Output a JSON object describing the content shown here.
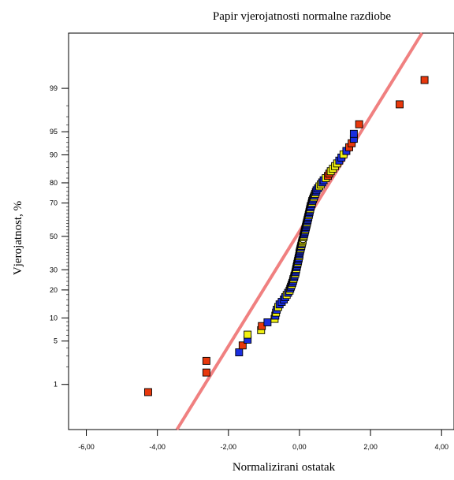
{
  "chart_data": {
    "type": "scatter",
    "title": "Papir vjerojatnosti normalne razdiobe",
    "xlabel": "Normalizirani ostatak",
    "ylabel": "Vjerojatnost, %",
    "xlim": [
      -6.5,
      4.35
    ],
    "ylim_percent": [
      0.12,
      99.93
    ],
    "y_scale": "normal-probability",
    "x_ticks": [
      -6,
      -4,
      -2,
      0,
      2,
      4
    ],
    "x_tick_labels": [
      "-6,00",
      "-4,00",
      "-2,00",
      "0,00",
      "2,00",
      "4,00"
    ],
    "y_ticks": [
      1,
      5,
      10,
      20,
      30,
      50,
      70,
      80,
      90,
      95,
      99
    ],
    "y_tick_labels": [
      "1",
      "5",
      "10",
      "20",
      "30",
      "50",
      "70",
      "80",
      "90",
      "95",
      "99"
    ],
    "fit_line": {
      "x": [
        -3.45,
        3.45
      ],
      "percent": [
        0.12,
        99.93
      ],
      "color": "#f08080"
    },
    "grid": false,
    "colors": {
      "red": "#e8380c",
      "blue": "#1a2ee0",
      "yellow": "#f2f212",
      "open": "#ffffff"
    },
    "points": [
      {
        "x": -4.26,
        "p": 0.72,
        "c": "red"
      },
      {
        "x": -2.62,
        "p": 1.62,
        "c": "red"
      },
      {
        "x": -2.62,
        "p": 2.52,
        "c": "red"
      },
      {
        "x": -1.7,
        "p": 3.42,
        "c": "blue"
      },
      {
        "x": -1.6,
        "p": 4.33,
        "c": "red"
      },
      {
        "x": -1.46,
        "p": 5.23,
        "c": "blue"
      },
      {
        "x": -1.46,
        "p": 6.13,
        "c": "yellow"
      },
      {
        "x": -1.08,
        "p": 7.03,
        "c": "yellow"
      },
      {
        "x": -1.06,
        "p": 7.94,
        "c": "red"
      },
      {
        "x": -0.9,
        "p": 8.84,
        "c": "blue"
      },
      {
        "x": -0.7,
        "p": 9.74,
        "c": "yellow"
      },
      {
        "x": -0.68,
        "p": 10.65,
        "c": "blue"
      },
      {
        "x": -0.66,
        "p": 11.55,
        "c": "yellow"
      },
      {
        "x": -0.64,
        "p": 12.45,
        "c": "blue"
      },
      {
        "x": -0.6,
        "p": 13.35,
        "c": "yellow"
      },
      {
        "x": -0.56,
        "p": 14.26,
        "c": "blue"
      },
      {
        "x": -0.5,
        "p": 15.16,
        "c": "blue"
      },
      {
        "x": -0.44,
        "p": 16.06,
        "c": "blue"
      },
      {
        "x": -0.4,
        "p": 16.97,
        "c": "blue"
      },
      {
        "x": -0.36,
        "p": 17.87,
        "c": "yellow"
      },
      {
        "x": -0.32,
        "p": 18.77,
        "c": "blue"
      },
      {
        "x": -0.28,
        "p": 19.68,
        "c": "yellow"
      },
      {
        "x": -0.26,
        "p": 20.58,
        "c": "blue"
      },
      {
        "x": -0.24,
        "p": 21.48,
        "c": "blue"
      },
      {
        "x": -0.22,
        "p": 22.39,
        "c": "yellow"
      },
      {
        "x": -0.2,
        "p": 23.29,
        "c": "blue"
      },
      {
        "x": -0.18,
        "p": 24.19,
        "c": "blue"
      },
      {
        "x": -0.17,
        "p": 25.1,
        "c": "yellow"
      },
      {
        "x": -0.15,
        "p": 26.0,
        "c": "blue"
      },
      {
        "x": -0.14,
        "p": 26.9,
        "c": "blue"
      },
      {
        "x": -0.12,
        "p": 27.81,
        "c": "yellow"
      },
      {
        "x": -0.11,
        "p": 28.71,
        "c": "blue"
      },
      {
        "x": -0.1,
        "p": 29.61,
        "c": "blue"
      },
      {
        "x": -0.09,
        "p": 30.52,
        "c": "yellow"
      },
      {
        "x": -0.08,
        "p": 31.42,
        "c": "blue"
      },
      {
        "x": -0.07,
        "p": 32.32,
        "c": "blue"
      },
      {
        "x": -0.06,
        "p": 33.23,
        "c": "blue"
      },
      {
        "x": -0.05,
        "p": 34.13,
        "c": "yellow"
      },
      {
        "x": -0.04,
        "p": 35.03,
        "c": "blue"
      },
      {
        "x": -0.03,
        "p": 35.94,
        "c": "blue"
      },
      {
        "x": -0.02,
        "p": 36.84,
        "c": "blue"
      },
      {
        "x": -0.01,
        "p": 37.74,
        "c": "yellow"
      },
      {
        "x": 0.0,
        "p": 38.65,
        "c": "blue"
      },
      {
        "x": 0.0,
        "p": 39.55,
        "c": "blue"
      },
      {
        "x": 0.01,
        "p": 40.45,
        "c": "blue"
      },
      {
        "x": 0.02,
        "p": 41.35,
        "c": "blue"
      },
      {
        "x": 0.03,
        "p": 42.26,
        "c": "yellow"
      },
      {
        "x": 0.04,
        "p": 43.16,
        "c": "blue"
      },
      {
        "x": 0.05,
        "p": 44.06,
        "c": "yellow"
      },
      {
        "x": 0.06,
        "p": 44.97,
        "c": "blue"
      },
      {
        "x": 0.07,
        "p": 45.87,
        "c": "yellow"
      },
      {
        "x": 0.08,
        "p": 46.77,
        "c": "yellow"
      },
      {
        "x": 0.09,
        "p": 47.68,
        "c": "yellow"
      },
      {
        "x": 0.1,
        "p": 48.58,
        "c": "open"
      },
      {
        "x": 0.11,
        "p": 49.48,
        "c": "yellow"
      },
      {
        "x": 0.12,
        "p": 50.39,
        "c": "yellow"
      },
      {
        "x": 0.13,
        "p": 51.29,
        "c": "blue"
      },
      {
        "x": 0.14,
        "p": 52.19,
        "c": "blue"
      },
      {
        "x": 0.15,
        "p": 53.1,
        "c": "blue"
      },
      {
        "x": 0.16,
        "p": 54.0,
        "c": "yellow"
      },
      {
        "x": 0.17,
        "p": 54.9,
        "c": "blue"
      },
      {
        "x": 0.18,
        "p": 55.81,
        "c": "blue"
      },
      {
        "x": 0.19,
        "p": 56.71,
        "c": "blue"
      },
      {
        "x": 0.2,
        "p": 57.61,
        "c": "blue"
      },
      {
        "x": 0.21,
        "p": 58.52,
        "c": "yellow"
      },
      {
        "x": 0.22,
        "p": 59.42,
        "c": "blue"
      },
      {
        "x": 0.23,
        "p": 60.32,
        "c": "blue"
      },
      {
        "x": 0.24,
        "p": 61.23,
        "c": "blue"
      },
      {
        "x": 0.25,
        "p": 62.13,
        "c": "blue"
      },
      {
        "x": 0.26,
        "p": 63.03,
        "c": "yellow"
      },
      {
        "x": 0.27,
        "p": 63.94,
        "c": "blue"
      },
      {
        "x": 0.28,
        "p": 64.84,
        "c": "blue"
      },
      {
        "x": 0.29,
        "p": 65.74,
        "c": "blue"
      },
      {
        "x": 0.3,
        "p": 66.65,
        "c": "yellow"
      },
      {
        "x": 0.31,
        "p": 67.55,
        "c": "blue"
      },
      {
        "x": 0.32,
        "p": 68.45,
        "c": "blue"
      },
      {
        "x": 0.34,
        "p": 69.35,
        "c": "blue"
      },
      {
        "x": 0.35,
        "p": 70.26,
        "c": "yellow"
      },
      {
        "x": 0.36,
        "p": 71.16,
        "c": "blue"
      },
      {
        "x": 0.38,
        "p": 72.06,
        "c": "blue"
      },
      {
        "x": 0.4,
        "p": 72.97,
        "c": "yellow"
      },
      {
        "x": 0.42,
        "p": 73.87,
        "c": "blue"
      },
      {
        "x": 0.44,
        "p": 74.77,
        "c": "yellow"
      },
      {
        "x": 0.46,
        "p": 75.68,
        "c": "blue"
      },
      {
        "x": 0.48,
        "p": 76.58,
        "c": "blue"
      },
      {
        "x": 0.52,
        "p": 77.48,
        "c": "blue"
      },
      {
        "x": 0.56,
        "p": 78.39,
        "c": "yellow"
      },
      {
        "x": 0.6,
        "p": 79.29,
        "c": "yellow"
      },
      {
        "x": 0.64,
        "p": 80.19,
        "c": "blue"
      },
      {
        "x": 0.68,
        "p": 81.1,
        "c": "blue"
      },
      {
        "x": 0.74,
        "p": 82.0,
        "c": "yellow"
      },
      {
        "x": 0.8,
        "p": 82.9,
        "c": "red"
      },
      {
        "x": 0.84,
        "p": 83.81,
        "c": "red"
      },
      {
        "x": 0.88,
        "p": 84.71,
        "c": "yellow"
      },
      {
        "x": 0.94,
        "p": 85.61,
        "c": "yellow"
      },
      {
        "x": 1.0,
        "p": 86.52,
        "c": "yellow"
      },
      {
        "x": 1.06,
        "p": 87.42,
        "c": "yellow"
      },
      {
        "x": 1.12,
        "p": 88.32,
        "c": "blue"
      },
      {
        "x": 1.18,
        "p": 89.23,
        "c": "blue"
      },
      {
        "x": 1.24,
        "p": 90.13,
        "c": "yellow"
      },
      {
        "x": 1.32,
        "p": 91.03,
        "c": "blue"
      },
      {
        "x": 1.4,
        "p": 91.94,
        "c": "red"
      },
      {
        "x": 1.47,
        "p": 92.84,
        "c": "red"
      },
      {
        "x": 1.53,
        "p": 93.74,
        "c": "blue"
      },
      {
        "x": 1.53,
        "p": 94.65,
        "c": "blue"
      },
      {
        "x": 1.68,
        "p": 96.1,
        "c": "red"
      },
      {
        "x": 2.82,
        "p": 98.1,
        "c": "red"
      },
      {
        "x": 3.52,
        "p": 99.3,
        "c": "red"
      }
    ]
  }
}
